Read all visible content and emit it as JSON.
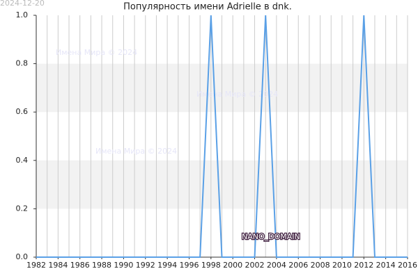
{
  "chart_data": {
    "type": "line",
    "title": "Популярность имени Adrielle в dnk.",
    "date_stamp": "2024-12-20",
    "watermarks": [
      "Имена Мира © 2024",
      "Имена Мира © 2024",
      "Имена Мира © 2024"
    ],
    "domain_label": "NANO_DOMAIN",
    "x": [
      1982,
      1983,
      1984,
      1985,
      1986,
      1987,
      1988,
      1989,
      1990,
      1991,
      1992,
      1993,
      1994,
      1995,
      1996,
      1997,
      1998,
      1999,
      2000,
      2001,
      2002,
      2003,
      2004,
      2005,
      2006,
      2007,
      2008,
      2009,
      2010,
      2011,
      2012,
      2013,
      2014,
      2015,
      2016
    ],
    "series": [
      {
        "color": "#5aa0e6",
        "values": [
          0,
          0,
          0,
          0,
          0,
          0,
          0,
          0,
          0,
          0,
          0,
          0,
          0,
          0,
          0,
          0,
          1,
          0,
          0,
          0,
          0,
          1,
          0,
          0,
          0,
          0,
          0,
          0,
          0,
          0,
          1,
          0,
          0,
          0,
          0
        ]
      }
    ],
    "xlim": [
      1982,
      2016
    ],
    "xticks": [
      1982,
      1984,
      1986,
      1988,
      1990,
      1992,
      1994,
      1996,
      1998,
      2000,
      2002,
      2004,
      2006,
      2008,
      2010,
      2012,
      2014,
      2016
    ],
    "ylim": [
      0,
      1
    ],
    "yticks": [
      {
        "value": 0,
        "label": "0.0"
      },
      0.2,
      0.4,
      0.6,
      0.8,
      {
        "value": 1,
        "label": "1.0"
      }
    ],
    "grid": true
  }
}
